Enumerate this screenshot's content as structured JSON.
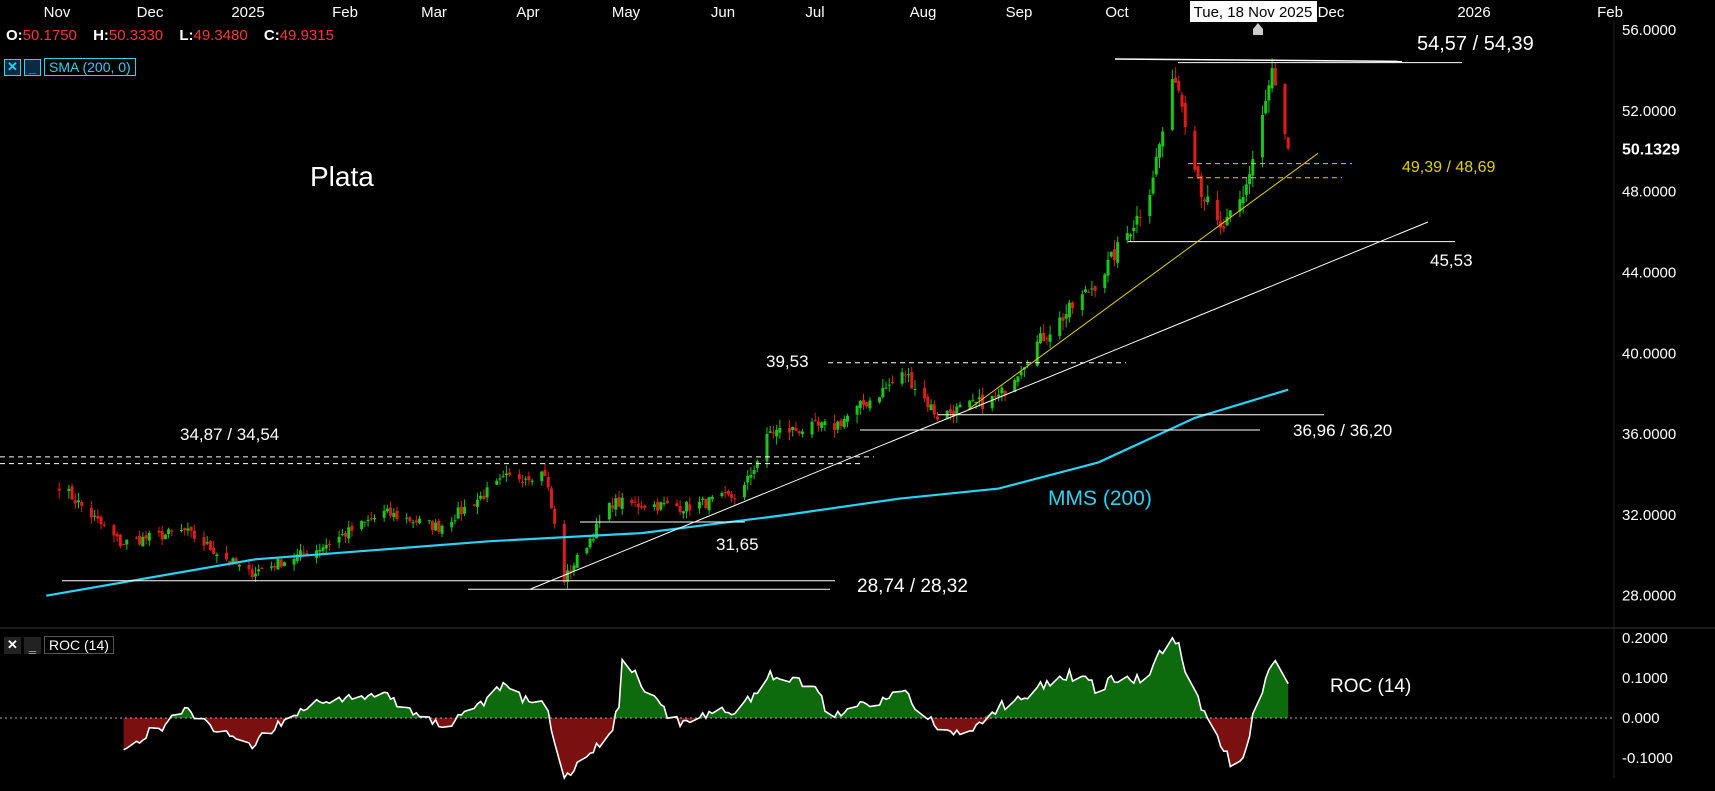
{
  "ohlc": {
    "o_label": "O:",
    "o": "50.1750",
    "h_label": "H:",
    "h": "50.3330",
    "l_label": "L:",
    "l": "49.3480",
    "c_label": "C:",
    "c": "49.9315"
  },
  "indicators": {
    "sma_label": "SMA (200, 0)",
    "roc_label": "ROC (14)",
    "close_glyph": "✕",
    "minimize_glyph": "‗"
  },
  "crosshair_date": "Tue, 18 Nov 2025",
  "last_price": "50.1329",
  "colors": {
    "background": "#000000",
    "up": "#19c619",
    "down": "#e01b1b",
    "sma": "#29d3f3",
    "trend": "#e5d000",
    "support": "#ffffff",
    "roc_pos": "#0d6b0d",
    "roc_neg": "#7a1010"
  },
  "chart_data": {
    "type": "candlestick",
    "title": "Plata",
    "x_ticks": [
      "Nov",
      "Dec",
      "2025",
      "Feb",
      "Mar",
      "Apr",
      "May",
      "Jun",
      "Jul",
      "Aug",
      "Sep",
      "Oct",
      "Dec",
      "2026",
      "Feb"
    ],
    "y_ticks": [
      "28.0000",
      "32.0000",
      "36.0000",
      "40.0000",
      "44.0000",
      "48.0000",
      "52.0000",
      "56.0000"
    ],
    "ylim": [
      26.5,
      56.5
    ],
    "close_path": [
      [
        "2024-11-01",
        33.5
      ],
      [
        "2024-11-20",
        30.6
      ],
      [
        "2024-12-10",
        31.2
      ],
      [
        "2024-12-30",
        29.1
      ],
      [
        "2025-01-20",
        30.3
      ],
      [
        "2025-02-10",
        32.1
      ],
      [
        "2025-02-27",
        31.4
      ],
      [
        "2025-03-20",
        33.8
      ],
      [
        "2025-04-01",
        34.1
      ],
      [
        "2025-04-07",
        28.8
      ],
      [
        "2025-04-22",
        32.6
      ],
      [
        "2025-05-15",
        32.4
      ],
      [
        "2025-06-01",
        33.0
      ],
      [
        "2025-06-10",
        36.1
      ],
      [
        "2025-06-30",
        36.4
      ],
      [
        "2025-07-22",
        39.0
      ],
      [
        "2025-08-01",
        36.9
      ],
      [
        "2025-08-20",
        37.8
      ],
      [
        "2025-09-01",
        40.5
      ],
      [
        "2025-09-20",
        43.6
      ],
      [
        "2025-10-05",
        47.5
      ],
      [
        "2025-10-14",
        53.8
      ],
      [
        "2025-10-22",
        48.1
      ],
      [
        "2025-10-28",
        46.0
      ],
      [
        "2025-11-04",
        47.6
      ],
      [
        "2025-11-13",
        53.9
      ],
      [
        "2025-11-18",
        49.93
      ]
    ],
    "sma_200": [
      [
        "2024-10-28",
        28.0
      ],
      [
        "2025-01-01",
        29.8
      ],
      [
        "2025-03-15",
        30.7
      ],
      [
        "2025-05-01",
        31.1
      ],
      [
        "2025-06-15",
        32.0
      ],
      [
        "2025-07-20",
        32.8
      ],
      [
        "2025-08-20",
        33.3
      ],
      [
        "2025-09-20",
        34.6
      ],
      [
        "2025-10-20",
        36.8
      ],
      [
        "2025-11-18",
        38.2
      ]
    ],
    "annotations": {
      "levels": [
        "54,57 / 54,39",
        "49,39 / 48,69",
        "45,53",
        "39,53",
        "36,96 / 36,20",
        "34,87 / 34,54",
        "31,65",
        "28,74 / 28,32"
      ],
      "sma_label": "MMS (200)",
      "roc_label": "ROC (14)"
    },
    "roc": {
      "y_ticks": [
        "0.2000",
        "0.1000",
        "0.000",
        "-0.1000"
      ],
      "ylim": [
        -0.15,
        0.22
      ]
    }
  }
}
